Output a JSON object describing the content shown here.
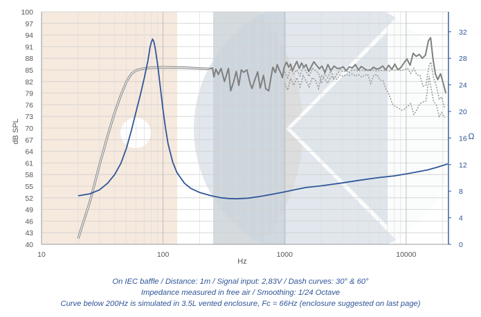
{
  "chart_data": {
    "type": "line",
    "xlabel": "Hz",
    "ylabel_left": "dB SPL",
    "ylabel_right": "Ω",
    "x_scale": "log",
    "xlim": [
      10,
      22000
    ],
    "ylim_left": [
      40,
      100
    ],
    "ylim_right": [
      0,
      35
    ],
    "x_ticks": [
      "10",
      "100",
      "1000",
      "10000"
    ],
    "x_tick_values": [
      10,
      100,
      1000,
      10000
    ],
    "y_ticks_left": [
      "40",
      "43",
      "46",
      "49",
      "52",
      "55",
      "58",
      "61",
      "64",
      "67",
      "70",
      "73",
      "76",
      "79",
      "82",
      "85",
      "88",
      "91",
      "94",
      "97",
      "100"
    ],
    "y_tick_values_left": [
      40,
      43,
      46,
      49,
      52,
      55,
      58,
      61,
      64,
      67,
      70,
      73,
      76,
      79,
      82,
      85,
      88,
      91,
      94,
      97,
      100
    ],
    "y_ticks_right": [
      "0",
      "4",
      "8",
      "12",
      "16",
      "20",
      "24",
      "28",
      "32"
    ],
    "y_tick_values_right": [
      0,
      4,
      8,
      12,
      16,
      20,
      24,
      28,
      32
    ],
    "grid": true,
    "colors": {
      "spl": "#7f7f7f",
      "impedance": "#2f5597",
      "grid": "#d0d0d0",
      "watermark_peach": "#f3e1d3",
      "watermark_blue": "#c9d4dd"
    },
    "series": [
      {
        "role": "spl_simulated_pair",
        "style": "double",
        "axis": "left",
        "points": [
          [
            20,
            41.5
          ],
          [
            25,
            51
          ],
          [
            30,
            60.5
          ],
          [
            35,
            68
          ],
          [
            40,
            74
          ],
          [
            45,
            78.5
          ],
          [
            50,
            82
          ],
          [
            55,
            84
          ],
          [
            60,
            84.9
          ],
          [
            70,
            85.4
          ],
          [
            80,
            85.6
          ],
          [
            100,
            85.7
          ],
          [
            150,
            85.6
          ],
          [
            200,
            85.4
          ],
          [
            240,
            85.3
          ]
        ]
      },
      {
        "role": "spl_on_axis",
        "style": "solid",
        "axis": "left",
        "points": [
          [
            240,
            85.3
          ],
          [
            255,
            85.5
          ],
          [
            262,
            83.2
          ],
          [
            272,
            85.2
          ],
          [
            285,
            83.8
          ],
          [
            300,
            85.4
          ],
          [
            320,
            82.0
          ],
          [
            345,
            85.4
          ],
          [
            360,
            79.6
          ],
          [
            380,
            81.8
          ],
          [
            400,
            84.6
          ],
          [
            420,
            81.0
          ],
          [
            440,
            85.0
          ],
          [
            460,
            84.4
          ],
          [
            490,
            85.0
          ],
          [
            520,
            81.5
          ],
          [
            540,
            80.2
          ],
          [
            565,
            82.2
          ],
          [
            600,
            84.5
          ],
          [
            630,
            80.3
          ],
          [
            670,
            83.6
          ],
          [
            700,
            80.1
          ],
          [
            740,
            79.6
          ],
          [
            770,
            82.8
          ],
          [
            800,
            85.7
          ],
          [
            840,
            84.3
          ],
          [
            870,
            86.4
          ],
          [
            900,
            85.1
          ],
          [
            930,
            84.2
          ],
          [
            960,
            83.0
          ],
          [
            990,
            85.6
          ],
          [
            1010,
            86.3
          ],
          [
            1040,
            87.0
          ],
          [
            1080,
            85.7
          ],
          [
            1120,
            86.5
          ],
          [
            1160,
            84.8
          ],
          [
            1200,
            85.8
          ],
          [
            1260,
            87.2
          ],
          [
            1320,
            85.4
          ],
          [
            1380,
            86.8
          ],
          [
            1440,
            85.6
          ],
          [
            1500,
            86.4
          ],
          [
            1580,
            84.6
          ],
          [
            1660,
            85.9
          ],
          [
            1740,
            87.1
          ],
          [
            1830,
            86.2
          ],
          [
            1930,
            85.3
          ],
          [
            2030,
            86.0
          ],
          [
            2150,
            84.3
          ],
          [
            2270,
            86.4
          ],
          [
            2400,
            84.8
          ],
          [
            2550,
            86.0
          ],
          [
            2700,
            85.4
          ],
          [
            2860,
            85.4
          ],
          [
            3030,
            85.8
          ],
          [
            3210,
            84.8
          ],
          [
            3400,
            85.8
          ],
          [
            3600,
            85.5
          ],
          [
            3820,
            86.4
          ],
          [
            4050,
            85.0
          ],
          [
            4280,
            85.9
          ],
          [
            4530,
            85.3
          ],
          [
            4800,
            84.9
          ],
          [
            5090,
            85.0
          ],
          [
            5390,
            85.7
          ],
          [
            5710,
            85.2
          ],
          [
            6050,
            85.4
          ],
          [
            6410,
            86.0
          ],
          [
            6790,
            85.0
          ],
          [
            7190,
            86.2
          ],
          [
            7620,
            85.1
          ],
          [
            8070,
            86.5
          ],
          [
            8550,
            85.0
          ],
          [
            9060,
            85.6
          ],
          [
            9600,
            86.8
          ],
          [
            10170,
            87.8
          ],
          [
            10780,
            86.2
          ],
          [
            11420,
            89.3
          ],
          [
            12100,
            88.5
          ],
          [
            12820,
            89.0
          ],
          [
            13590,
            88.0
          ],
          [
            14400,
            88.8
          ],
          [
            15250,
            92.5
          ],
          [
            15900,
            93.3
          ],
          [
            16600,
            88.0
          ],
          [
            17400,
            84.0
          ],
          [
            18200,
            82.5
          ],
          [
            19200,
            84.0
          ],
          [
            20200,
            81.5
          ],
          [
            21200,
            79.0
          ]
        ]
      },
      {
        "role": "spl_30deg",
        "style": "dash",
        "axis": "left",
        "points": [
          [
            1000,
            84.5
          ],
          [
            1060,
            83.0
          ],
          [
            1120,
            85.4
          ],
          [
            1190,
            84.0
          ],
          [
            1260,
            85.0
          ],
          [
            1340,
            83.5
          ],
          [
            1420,
            85.8
          ],
          [
            1500,
            84.6
          ],
          [
            1590,
            83.3
          ],
          [
            1690,
            85.4
          ],
          [
            1790,
            84.8
          ],
          [
            1900,
            84.2
          ],
          [
            2010,
            81.5
          ],
          [
            2130,
            84.0
          ],
          [
            2260,
            83.0
          ],
          [
            2400,
            84.8
          ],
          [
            2540,
            82.6
          ],
          [
            2700,
            84.0
          ],
          [
            2860,
            85.0
          ],
          [
            3030,
            84.5
          ],
          [
            3210,
            84.8
          ],
          [
            3400,
            84.3
          ],
          [
            3600,
            85.0
          ],
          [
            3820,
            84.9
          ],
          [
            4050,
            84.7
          ],
          [
            4290,
            84.9
          ],
          [
            4550,
            84.8
          ],
          [
            4820,
            84.9
          ],
          [
            5110,
            84.8
          ],
          [
            5420,
            84.9
          ],
          [
            5740,
            84.7
          ],
          [
            6090,
            84.9
          ],
          [
            6450,
            84.8
          ],
          [
            6840,
            84.9
          ],
          [
            7250,
            84.7
          ],
          [
            7680,
            85.0
          ],
          [
            8140,
            84.9
          ],
          [
            8630,
            85.0
          ],
          [
            9150,
            84.8
          ],
          [
            9700,
            85.1
          ],
          [
            10280,
            85.4
          ],
          [
            10900,
            84.1
          ],
          [
            11550,
            85.4
          ],
          [
            12250,
            83.7
          ],
          [
            12980,
            83.6
          ],
          [
            13760,
            80.8
          ],
          [
            14580,
            81.1
          ],
          [
            15460,
            86.3
          ],
          [
            16000,
            87.0
          ],
          [
            16800,
            83.0
          ],
          [
            17800,
            80.7
          ],
          [
            18700,
            77.5
          ],
          [
            19600,
            78.0
          ],
          [
            20700,
            75.0
          ]
        ]
      },
      {
        "role": "spl_60deg",
        "style": "dash",
        "axis": "left",
        "points": [
          [
            1000,
            81.5
          ],
          [
            1060,
            79.8
          ],
          [
            1120,
            82.8
          ],
          [
            1190,
            81.0
          ],
          [
            1260,
            83.0
          ],
          [
            1340,
            80.6
          ],
          [
            1420,
            83.5
          ],
          [
            1500,
            82.2
          ],
          [
            1590,
            80.6
          ],
          [
            1690,
            83.0
          ],
          [
            1790,
            82.5
          ],
          [
            1900,
            80.2
          ],
          [
            2010,
            83.5
          ],
          [
            2130,
            82.8
          ],
          [
            2260,
            81.6
          ],
          [
            2400,
            83.2
          ],
          [
            2540,
            82.9
          ],
          [
            2700,
            82.6
          ],
          [
            2860,
            83.7
          ],
          [
            3030,
            83.3
          ],
          [
            3210,
            83.8
          ],
          [
            3400,
            83.5
          ],
          [
            3600,
            84.0
          ],
          [
            3820,
            83.4
          ],
          [
            4050,
            83.8
          ],
          [
            4290,
            83.2
          ],
          [
            4550,
            83.6
          ],
          [
            4820,
            83.9
          ],
          [
            5110,
            81.5
          ],
          [
            5420,
            83.6
          ],
          [
            5740,
            83.8
          ],
          [
            6090,
            82.4
          ],
          [
            6450,
            82.2
          ],
          [
            6840,
            80.0
          ],
          [
            7250,
            78.6
          ],
          [
            7680,
            76.3
          ],
          [
            8140,
            75.5
          ],
          [
            8630,
            75.2
          ],
          [
            9150,
            74.6
          ],
          [
            9700,
            74.9
          ],
          [
            10280,
            75.6
          ],
          [
            10900,
            76.3
          ],
          [
            11550,
            73.5
          ],
          [
            12250,
            74.7
          ],
          [
            12980,
            76.3
          ],
          [
            13760,
            76.7
          ],
          [
            14580,
            77.0
          ],
          [
            15460,
            83.4
          ],
          [
            16000,
            80.5
          ],
          [
            16800,
            77.0
          ],
          [
            17800,
            75.8
          ],
          [
            18700,
            73.0
          ],
          [
            19600,
            74.0
          ],
          [
            20700,
            72.7
          ]
        ]
      },
      {
        "role": "impedance",
        "style": "solid",
        "axis": "right",
        "points": [
          [
            20,
            7.3
          ],
          [
            25,
            7.6
          ],
          [
            30,
            8.2
          ],
          [
            35,
            9.2
          ],
          [
            40,
            10.5
          ],
          [
            45,
            12.2
          ],
          [
            50,
            14.5
          ],
          [
            55,
            17.2
          ],
          [
            60,
            20.0
          ],
          [
            65,
            22.5
          ],
          [
            70,
            25.0
          ],
          [
            75,
            27.6
          ],
          [
            78,
            29.6
          ],
          [
            80,
            30.4
          ],
          [
            82,
            30.9
          ],
          [
            84,
            30.5
          ],
          [
            86,
            29.6
          ],
          [
            90,
            27.2
          ],
          [
            95,
            23.6
          ],
          [
            100,
            20.2
          ],
          [
            105,
            17.4
          ],
          [
            110,
            15.1
          ],
          [
            120,
            12.4
          ],
          [
            130,
            10.8
          ],
          [
            150,
            9.2
          ],
          [
            170,
            8.4
          ],
          [
            200,
            7.8
          ],
          [
            250,
            7.3
          ],
          [
            300,
            7.0
          ],
          [
            350,
            6.9
          ],
          [
            400,
            6.85
          ],
          [
            500,
            6.95
          ],
          [
            600,
            7.15
          ],
          [
            700,
            7.35
          ],
          [
            800,
            7.55
          ],
          [
            1000,
            7.9
          ],
          [
            1200,
            8.2
          ],
          [
            1500,
            8.55
          ],
          [
            2000,
            8.8
          ],
          [
            2500,
            9.05
          ],
          [
            3000,
            9.25
          ],
          [
            4000,
            9.6
          ],
          [
            5000,
            9.85
          ],
          [
            6000,
            10.05
          ],
          [
            8000,
            10.3
          ],
          [
            10000,
            10.6
          ],
          [
            12000,
            10.85
          ],
          [
            15000,
            11.2
          ],
          [
            18000,
            11.6
          ],
          [
            22000,
            12.1
          ]
        ]
      }
    ]
  },
  "caption": {
    "line1": "On IEC baffle / Distance: 1m / Signal input: 2,83V / Dash curves: 30° & 60°",
    "line2": "Impedance measured in free air / Smoothing: 1/24 Octave",
    "line3": "Curve below 200Hz is simulated in 3.5L vented enclosure, Fc = 66Hz (enclosure suggested on last page)"
  }
}
